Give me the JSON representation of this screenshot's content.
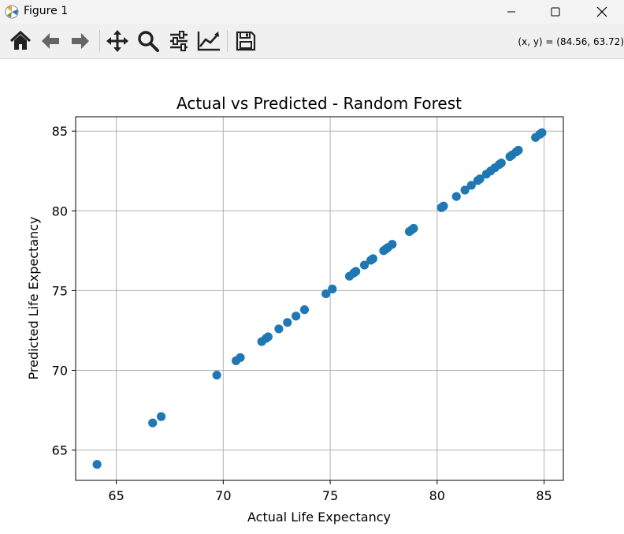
{
  "window": {
    "title": "Figure 1"
  },
  "toolbar": {
    "tools": [
      {
        "name": "home-icon"
      },
      {
        "name": "back-arrow-icon"
      },
      {
        "name": "forward-arrow-icon"
      },
      {
        "name": "pan-move-icon"
      },
      {
        "name": "zoom-icon"
      },
      {
        "name": "configure-subplots-icon"
      },
      {
        "name": "edit-axis-icon"
      },
      {
        "name": "save-icon"
      }
    ],
    "coords": "(x, y) = (84.56, 63.72)"
  },
  "chart_data": {
    "type": "scatter",
    "title": "Actual vs Predicted - Random Forest",
    "xlabel": "Actual Life Expectancy",
    "ylabel": "Predicted Life Expectancy",
    "xlim": [
      63.1,
      85.9
    ],
    "ylim": [
      63.1,
      85.9
    ],
    "xticks": [
      65,
      70,
      75,
      80,
      85
    ],
    "yticks": [
      65,
      70,
      75,
      80,
      85
    ],
    "grid": true,
    "marker_color": "#1f77b4",
    "points": [
      [
        64.1,
        64.1
      ],
      [
        66.7,
        66.7
      ],
      [
        67.1,
        67.1
      ],
      [
        69.7,
        69.7
      ],
      [
        70.6,
        70.6
      ],
      [
        70.8,
        70.8
      ],
      [
        71.8,
        71.8
      ],
      [
        72.0,
        72.0
      ],
      [
        72.1,
        72.1
      ],
      [
        72.6,
        72.6
      ],
      [
        73.0,
        73.0
      ],
      [
        73.4,
        73.4
      ],
      [
        73.8,
        73.8
      ],
      [
        74.8,
        74.8
      ],
      [
        75.1,
        75.1
      ],
      [
        75.9,
        75.9
      ],
      [
        76.1,
        76.1
      ],
      [
        76.2,
        76.2
      ],
      [
        76.6,
        76.6
      ],
      [
        76.9,
        76.9
      ],
      [
        77.0,
        77.0
      ],
      [
        77.5,
        77.5
      ],
      [
        77.6,
        77.6
      ],
      [
        77.7,
        77.7
      ],
      [
        77.9,
        77.9
      ],
      [
        78.7,
        78.7
      ],
      [
        78.8,
        78.8
      ],
      [
        78.9,
        78.9
      ],
      [
        80.2,
        80.2
      ],
      [
        80.3,
        80.3
      ],
      [
        80.9,
        80.9
      ],
      [
        81.3,
        81.3
      ],
      [
        81.6,
        81.6
      ],
      [
        81.9,
        81.9
      ],
      [
        82.0,
        82.0
      ],
      [
        82.3,
        82.3
      ],
      [
        82.5,
        82.5
      ],
      [
        82.7,
        82.7
      ],
      [
        82.9,
        82.9
      ],
      [
        83.0,
        83.0
      ],
      [
        83.4,
        83.4
      ],
      [
        83.5,
        83.5
      ],
      [
        83.7,
        83.7
      ],
      [
        83.8,
        83.8
      ],
      [
        84.6,
        84.6
      ],
      [
        84.8,
        84.8
      ],
      [
        84.9,
        84.9
      ]
    ]
  }
}
